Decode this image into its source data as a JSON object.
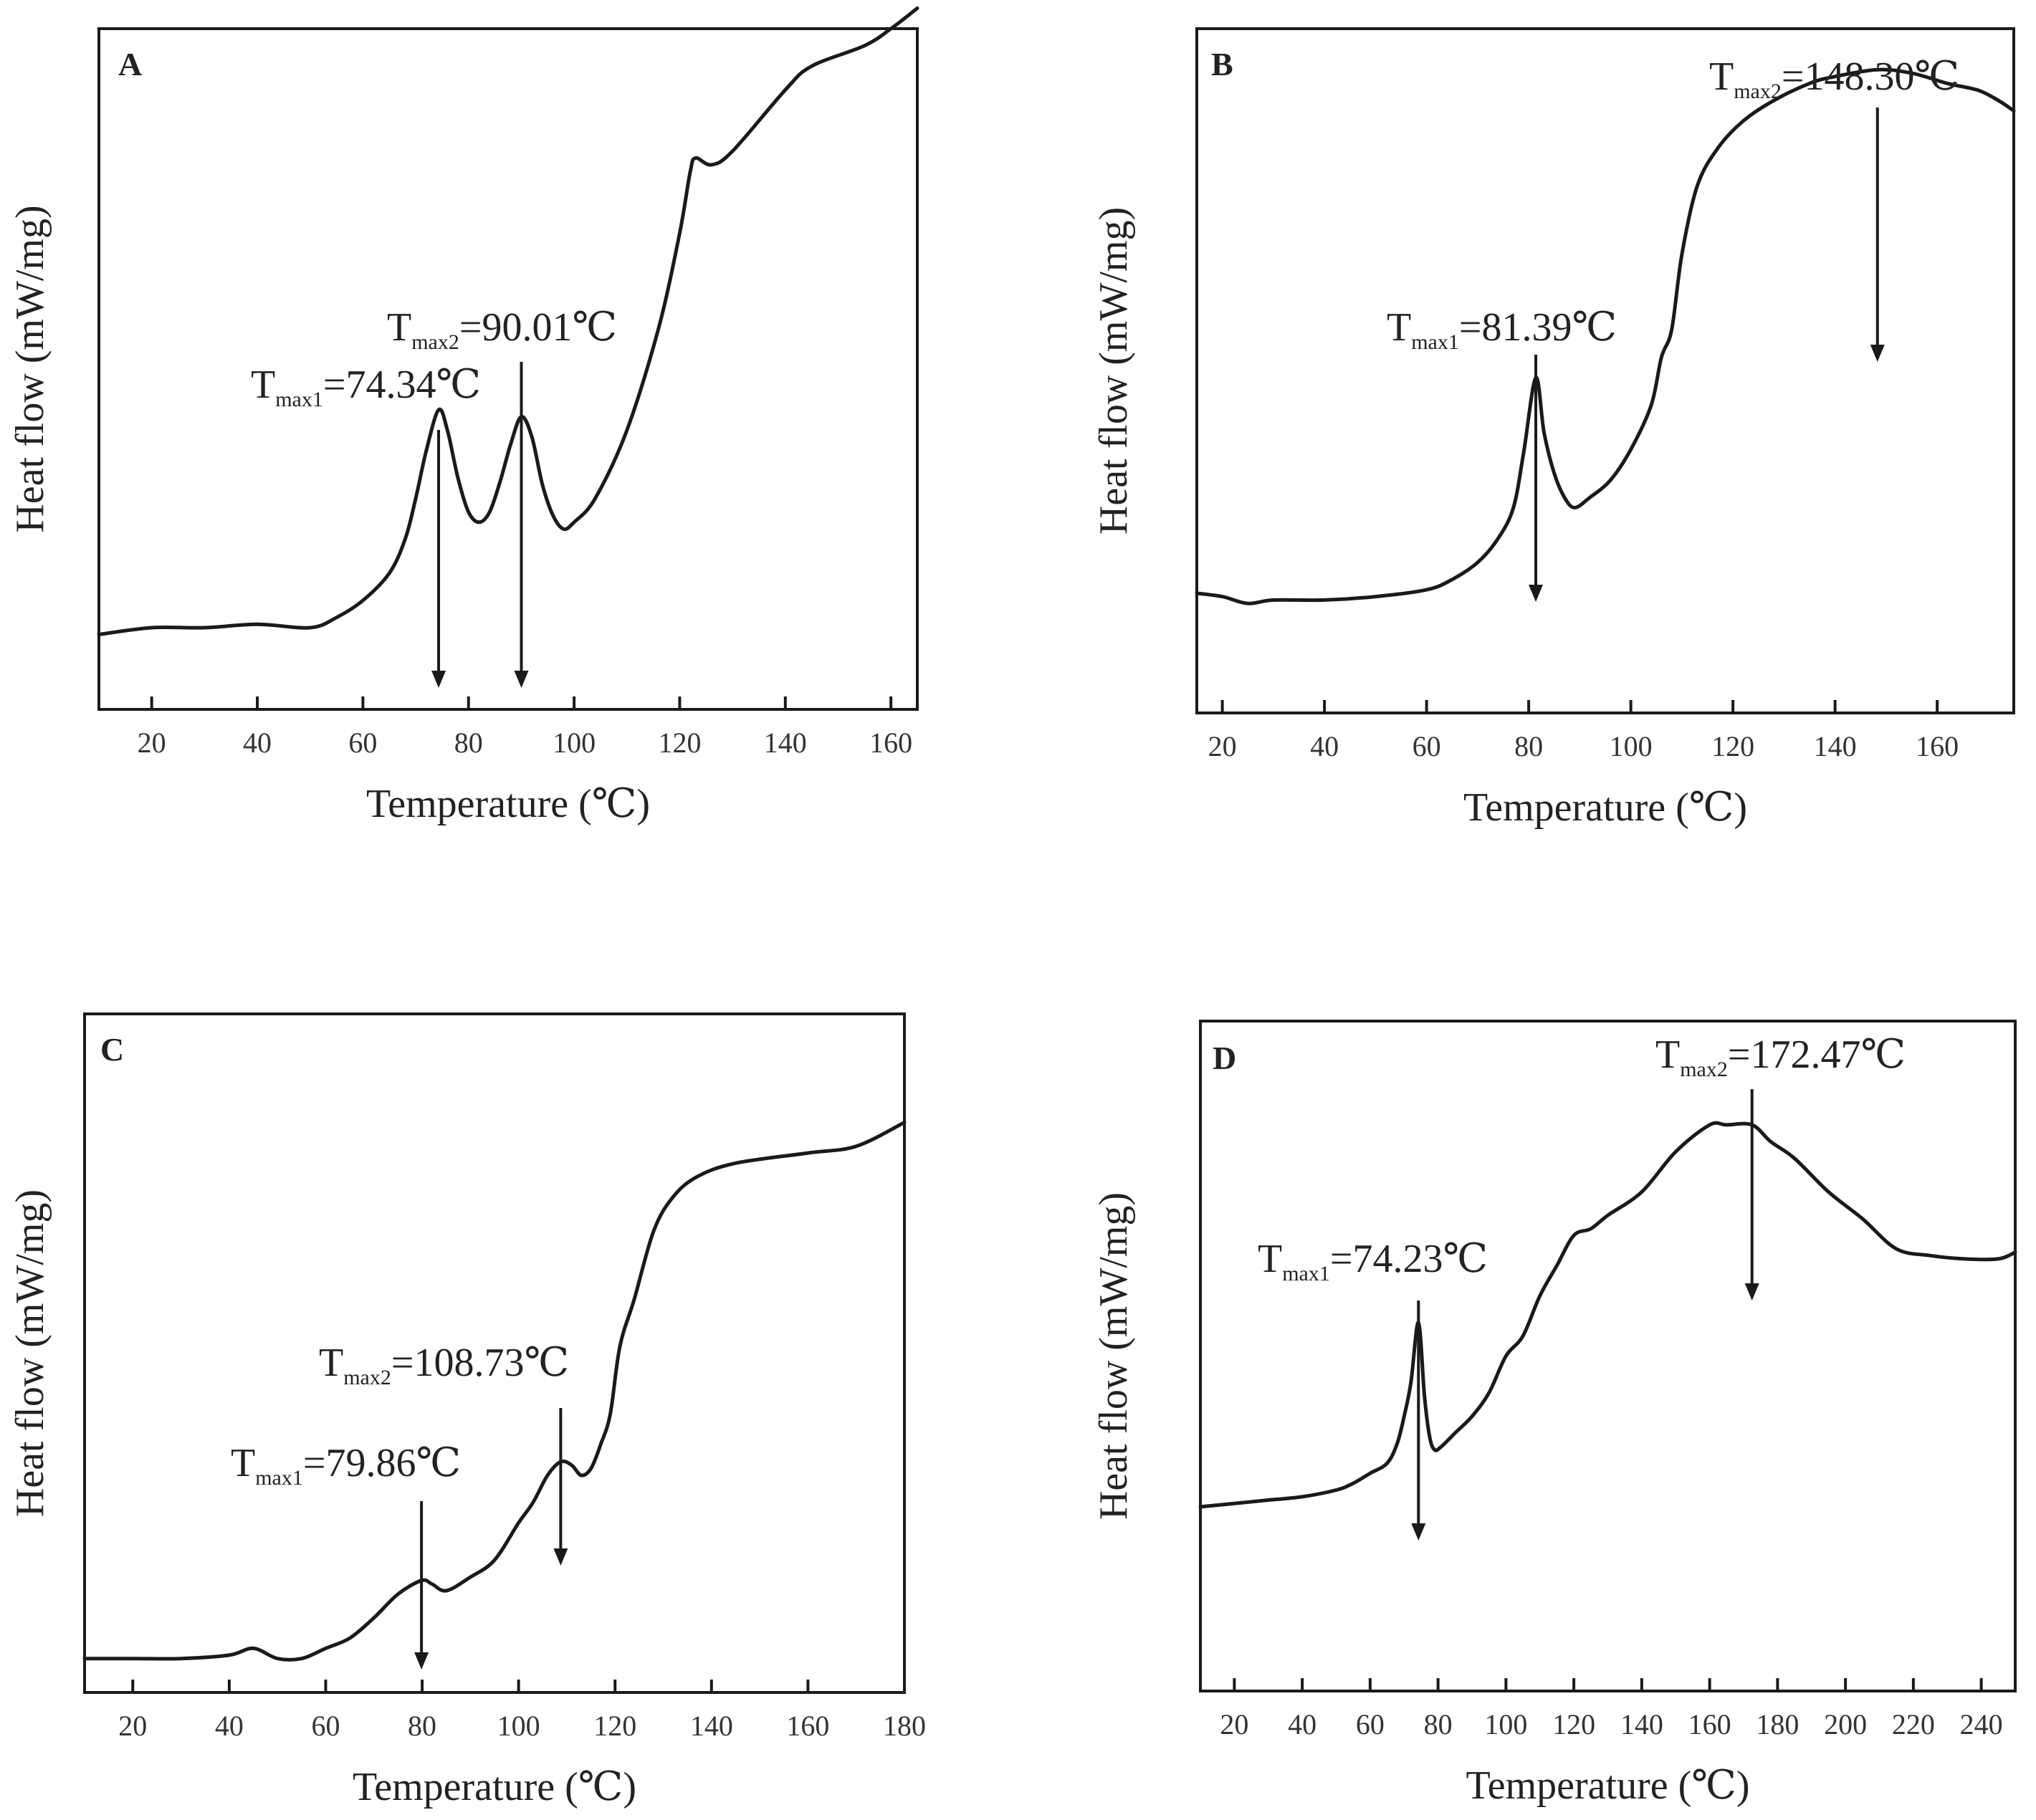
{
  "chart_data": [
    {
      "panel": "A",
      "type": "line",
      "xlabel": "Temperature (℃)",
      "ylabel": "Heat flow (mW/mg)",
      "xlim": [
        10,
        165
      ],
      "ylim": [
        0,
        100
      ],
      "xticks": [
        20,
        40,
        60,
        80,
        100,
        120,
        140,
        160
      ],
      "x": [
        10,
        20,
        30,
        40,
        50,
        55,
        60,
        65,
        68,
        70,
        72,
        74.34,
        76,
        78,
        80,
        82,
        84,
        86,
        88,
        90.01,
        92,
        94,
        96,
        98,
        100,
        104,
        110,
        116,
        120,
        122,
        123,
        126,
        130,
        140,
        145,
        155,
        160,
        165
      ],
      "y": [
        11,
        12,
        12,
        12.5,
        12,
        13.5,
        16,
        20,
        25,
        31,
        38,
        44,
        41,
        34,
        29,
        27.5,
        29,
        33.5,
        39,
        43,
        40,
        33,
        28.5,
        26.5,
        27.5,
        31,
        41,
        56,
        70,
        79,
        81,
        80,
        82,
        91,
        94.5,
        97.5,
        100,
        103
      ],
      "annotations": [
        {
          "label": "T",
          "sub": "max1",
          "value": "=74.34℃",
          "x": 74.34
        },
        {
          "label": "T",
          "sub": "max2",
          "value": "=90.01℃",
          "x": 90.01
        }
      ]
    },
    {
      "panel": "B",
      "type": "line",
      "xlabel": "Temperature (℃)",
      "ylabel": "Heat flow (mW/mg)",
      "xlim": [
        15,
        175
      ],
      "ylim": [
        0,
        100
      ],
      "xticks": [
        20,
        40,
        60,
        80,
        100,
        120,
        140,
        160
      ],
      "x": [
        15,
        20,
        25,
        30,
        40,
        50,
        60,
        65,
        70,
        74,
        77,
        79,
        81.39,
        83,
        85,
        87,
        89,
        92,
        96,
        100,
        104,
        106,
        108,
        110,
        113,
        117,
        122,
        128,
        135,
        140,
        148.3,
        155,
        162,
        168,
        172,
        175
      ],
      "y": [
        17.5,
        17,
        16,
        16.5,
        16.5,
        17,
        18,
        19.5,
        22,
        25.5,
        30,
        38,
        49,
        41,
        35,
        31.5,
        30,
        31.5,
        34,
        38.5,
        45,
        52,
        56,
        67,
        77,
        82.5,
        86.5,
        89.5,
        92,
        93,
        94,
        93.5,
        92,
        91,
        89.5,
        88
      ],
      "annotations": [
        {
          "label": "T",
          "sub": "max1",
          "value": "=81.39℃",
          "x": 81.39
        },
        {
          "label": "T",
          "sub": "max2",
          "value": "=148.30℃",
          "x": 148.3
        }
      ]
    },
    {
      "panel": "C",
      "type": "line",
      "xlabel": "Temperature (℃)",
      "ylabel": "Heat flow (mW/mg)",
      "xlim": [
        10,
        180
      ],
      "ylim": [
        0,
        100
      ],
      "xticks": [
        20,
        40,
        60,
        80,
        100,
        120,
        140,
        160,
        180
      ],
      "x": [
        10,
        20,
        30,
        40,
        45,
        50,
        55,
        60,
        65,
        70,
        75,
        79.86,
        82,
        85,
        90,
        95,
        100,
        103,
        106,
        108.73,
        111,
        113,
        115,
        117,
        119,
        121,
        124,
        128,
        132,
        137,
        145,
        160,
        170,
        180
      ],
      "y": [
        5,
        5,
        5,
        5.5,
        6.5,
        5,
        5,
        6.5,
        8,
        11,
        14.5,
        16.5,
        16,
        15,
        17,
        19.5,
        25,
        28,
        32,
        34,
        33.5,
        32,
        33,
        36.5,
        41,
        51,
        58,
        68,
        73,
        76,
        78,
        79.5,
        80.5,
        84
      ],
      "annotations": [
        {
          "label": "T",
          "sub": "max1",
          "value": "=79.86℃",
          "x": 79.86
        },
        {
          "label": "T",
          "sub": "max2",
          "value": "=108.73℃",
          "x": 108.73
        }
      ]
    },
    {
      "panel": "D",
      "type": "line",
      "xlabel": "Temperature (℃)",
      "ylabel": "Heat flow (mW/mg)",
      "xlim": [
        10,
        250
      ],
      "ylim": [
        0,
        100
      ],
      "xticks": [
        20,
        40,
        60,
        80,
        100,
        120,
        140,
        160,
        180,
        200,
        220,
        240
      ],
      "x": [
        10,
        20,
        30,
        40,
        50,
        55,
        60,
        65,
        68,
        70,
        72,
        74.23,
        76,
        77.5,
        79,
        81,
        85,
        90,
        95,
        100,
        105,
        110,
        115,
        120,
        125,
        130,
        140,
        150,
        160,
        165,
        172.47,
        178,
        185,
        195,
        205,
        215,
        225,
        235,
        245,
        250
      ],
      "y": [
        27.5,
        28,
        28.5,
        29,
        30,
        31,
        32.5,
        34,
        37,
        41,
        46,
        55,
        44,
        38,
        36,
        36.5,
        38.5,
        41,
        44.5,
        50,
        53,
        59,
        63.5,
        68,
        69,
        71,
        74.5,
        80.5,
        84.5,
        84.5,
        84.5,
        82,
        79.5,
        74.5,
        70.5,
        66,
        65,
        64.5,
        64.5,
        65.5
      ],
      "annotations": [
        {
          "label": "T",
          "sub": "max1",
          "value": "=74.23℃",
          "x": 74.23
        },
        {
          "label": "T",
          "sub": "max2",
          "value": "=172.47℃",
          "x": 172.47
        }
      ]
    }
  ]
}
